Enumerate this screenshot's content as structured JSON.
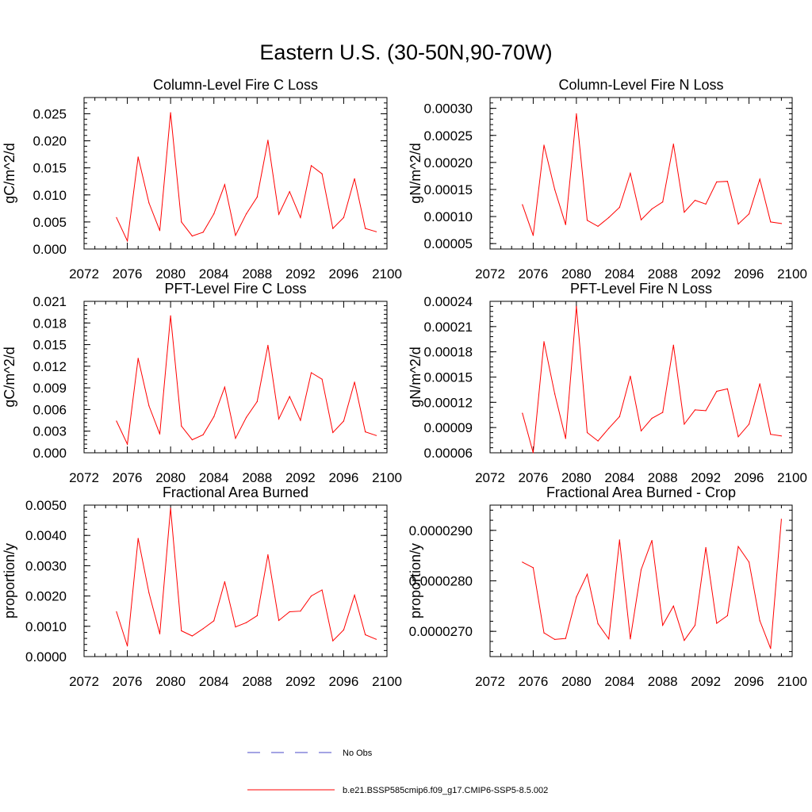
{
  "figure_title": "Eastern U.S. (30-50N,90-70W)",
  "series_color": "#ff0000",
  "obs_color": "#4a4ac8",
  "legend": {
    "obs_label": "No Obs",
    "model_label": "b.e21.BSSP585cmip6.f09_g17.CMIP6-SSP5-8.5.002"
  },
  "chart_data": [
    {
      "type": "line",
      "title": "Column-Level Fire C Loss",
      "ylabel": "gC/m^2/d",
      "xlim": [
        2072,
        2100
      ],
      "xticks": [
        "2072",
        "2076",
        "2080",
        "2084",
        "2088",
        "2092",
        "2096",
        "2100"
      ],
      "ylim": [
        0.0,
        0.028
      ],
      "yticks": [
        "0.000",
        "0.005",
        "0.010",
        "0.015",
        "0.020",
        "0.025"
      ],
      "ytick_values": [
        0.0,
        0.005,
        0.01,
        0.015,
        0.02,
        0.025
      ],
      "x": [
        2075,
        2076,
        2077,
        2078,
        2079,
        2080,
        2081,
        2082,
        2083,
        2084,
        2085,
        2086,
        2087,
        2088,
        2089,
        2090,
        2091,
        2092,
        2093,
        2094,
        2095,
        2096,
        2097,
        2098,
        2099
      ],
      "values": [
        0.0058,
        0.0015,
        0.017,
        0.0085,
        0.0034,
        0.0252,
        0.005,
        0.0024,
        0.0031,
        0.0065,
        0.0119,
        0.0025,
        0.0065,
        0.0096,
        0.0201,
        0.0064,
        0.0106,
        0.0058,
        0.0154,
        0.0139,
        0.0038,
        0.0058,
        0.013,
        0.0038,
        0.0032
      ]
    },
    {
      "type": "line",
      "title": "Column-Level Fire N Loss",
      "ylabel": "gN/m^2/d",
      "xlim": [
        2072,
        2100
      ],
      "xticks": [
        "2072",
        "2076",
        "2080",
        "2084",
        "2088",
        "2092",
        "2096",
        "2100"
      ],
      "ylim": [
        4e-05,
        0.00032
      ],
      "yticks": [
        "0.00005",
        "0.00010",
        "0.00015",
        "0.00020",
        "0.00025",
        "0.00030"
      ],
      "ytick_values": [
        5e-05,
        0.0001,
        0.00015,
        0.0002,
        0.00025,
        0.0003
      ],
      "x": [
        2075,
        2076,
        2077,
        2078,
        2079,
        2080,
        2081,
        2082,
        2083,
        2084,
        2085,
        2086,
        2087,
        2088,
        2089,
        2090,
        2091,
        2092,
        2093,
        2094,
        2095,
        2096,
        2097,
        2098,
        2099
      ],
      "values": [
        0.000122,
        6.5e-05,
        0.000232,
        0.00015,
        8.5e-05,
        0.00029,
        9.3e-05,
        8.2e-05,
        9.8e-05,
        0.000117,
        0.00018,
        9.4e-05,
        0.000114,
        0.000127,
        0.000234,
        0.000108,
        0.00013,
        0.000123,
        0.000164,
        0.000165,
        8.6e-05,
        0.000105,
        0.000169,
        9e-05,
        8.7e-05
      ]
    },
    {
      "type": "line",
      "title": "PFT-Level Fire C Loss",
      "ylabel": "gC/m^2/d",
      "xlim": [
        2072,
        2100
      ],
      "xticks": [
        "2072",
        "2076",
        "2080",
        "2084",
        "2088",
        "2092",
        "2096",
        "2100"
      ],
      "ylim": [
        0.0,
        0.021
      ],
      "yticks": [
        "0.000",
        "0.003",
        "0.006",
        "0.009",
        "0.012",
        "0.015",
        "0.018",
        "0.021"
      ],
      "ytick_values": [
        0.0,
        0.003,
        0.006,
        0.009,
        0.012,
        0.015,
        0.018,
        0.021
      ],
      "x": [
        2075,
        2076,
        2077,
        2078,
        2079,
        2080,
        2081,
        2082,
        2083,
        2084,
        2085,
        2086,
        2087,
        2088,
        2089,
        2090,
        2091,
        2092,
        2093,
        2094,
        2095,
        2096,
        2097,
        2098,
        2099
      ],
      "values": [
        0.0044,
        0.0012,
        0.0131,
        0.0065,
        0.0026,
        0.019,
        0.0037,
        0.0018,
        0.0025,
        0.005,
        0.0091,
        0.002,
        0.0049,
        0.0071,
        0.0149,
        0.0047,
        0.0078,
        0.0045,
        0.0111,
        0.0102,
        0.0028,
        0.0044,
        0.0098,
        0.0029,
        0.0024
      ]
    },
    {
      "type": "line",
      "title": "PFT-Level Fire N Loss",
      "ylabel": "gN/m^2/d",
      "xlim": [
        2072,
        2100
      ],
      "xticks": [
        "2072",
        "2076",
        "2080",
        "2084",
        "2088",
        "2092",
        "2096",
        "2100"
      ],
      "ylim": [
        6e-05,
        0.00024
      ],
      "yticks": [
        "0.00006",
        "0.00009",
        "0.00012",
        "0.00015",
        "0.00018",
        "0.00021",
        "0.00024"
      ],
      "ytick_values": [
        6e-05,
        9e-05,
        0.00012,
        0.00015,
        0.00018,
        0.00021,
        0.00024
      ],
      "x": [
        2075,
        2076,
        2077,
        2078,
        2079,
        2080,
        2081,
        2082,
        2083,
        2084,
        2085,
        2086,
        2087,
        2088,
        2089,
        2090,
        2091,
        2092,
        2093,
        2094,
        2095,
        2096,
        2097,
        2098,
        2099
      ],
      "values": [
        0.000107,
        6e-05,
        0.000192,
        0.00013,
        7.7e-05,
        0.000234,
        8.4e-05,
        7.4e-05,
        8.9e-05,
        0.000103,
        0.000151,
        8.6e-05,
        0.000101,
        0.000108,
        0.000188,
        9.4e-05,
        0.000111,
        0.00011,
        0.000133,
        0.000136,
        7.9e-05,
        9.4e-05,
        0.000142,
        8.2e-05,
        8e-05
      ]
    },
    {
      "type": "line",
      "title": "Fractional Area Burned",
      "ylabel": "proportion/y",
      "xlim": [
        2072,
        2100
      ],
      "xticks": [
        "2072",
        "2076",
        "2080",
        "2084",
        "2088",
        "2092",
        "2096",
        "2100"
      ],
      "ylim": [
        0.0,
        0.005
      ],
      "yticks": [
        "0.0000",
        "0.0010",
        "0.0020",
        "0.0030",
        "0.0040",
        "0.0050"
      ],
      "ytick_values": [
        0.0,
        0.001,
        0.002,
        0.003,
        0.004,
        0.005
      ],
      "x": [
        2075,
        2076,
        2077,
        2078,
        2079,
        2080,
        2081,
        2082,
        2083,
        2084,
        2085,
        2086,
        2087,
        2088,
        2089,
        2090,
        2091,
        2092,
        2093,
        2094,
        2095,
        2096,
        2097,
        2098,
        2099
      ],
      "values": [
        0.00148,
        0.00035,
        0.0039,
        0.0021,
        0.00075,
        0.0049,
        0.00085,
        0.00068,
        0.00092,
        0.00118,
        0.00247,
        0.00098,
        0.00112,
        0.00135,
        0.00336,
        0.00119,
        0.00148,
        0.0015,
        0.002,
        0.0022,
        0.00052,
        0.00088,
        0.00203,
        0.00072,
        0.00057
      ]
    },
    {
      "type": "line",
      "title": "Fractional Area Burned - Crop",
      "ylabel": "proportion/y",
      "xlim": [
        2072,
        2100
      ],
      "xticks": [
        "2072",
        "2076",
        "2080",
        "2084",
        "2088",
        "2092",
        "2096",
        "2100"
      ],
      "ylim": [
        2.65e-05,
        2.95e-05
      ],
      "yticks": [
        "0.0000270",
        "0.0000280",
        "0.0000290"
      ],
      "ytick_values": [
        2.7e-05,
        2.8e-05,
        2.9e-05
      ],
      "x": [
        2075,
        2076,
        2077,
        2078,
        2079,
        2080,
        2081,
        2082,
        2083,
        2084,
        2085,
        2086,
        2087,
        2088,
        2089,
        2090,
        2091,
        2092,
        2093,
        2094,
        2095,
        2096,
        2097,
        2098,
        2099
      ],
      "values": [
        2.837e-05,
        2.826e-05,
        2.697e-05,
        2.684e-05,
        2.686e-05,
        2.768e-05,
        2.813e-05,
        2.715e-05,
        2.685e-05,
        2.881e-05,
        2.685e-05,
        2.822e-05,
        2.88e-05,
        2.712e-05,
        2.75e-05,
        2.682e-05,
        2.712e-05,
        2.866e-05,
        2.716e-05,
        2.731e-05,
        2.868e-05,
        2.837e-05,
        2.721e-05,
        2.666e-05,
        2.922e-05
      ]
    }
  ]
}
